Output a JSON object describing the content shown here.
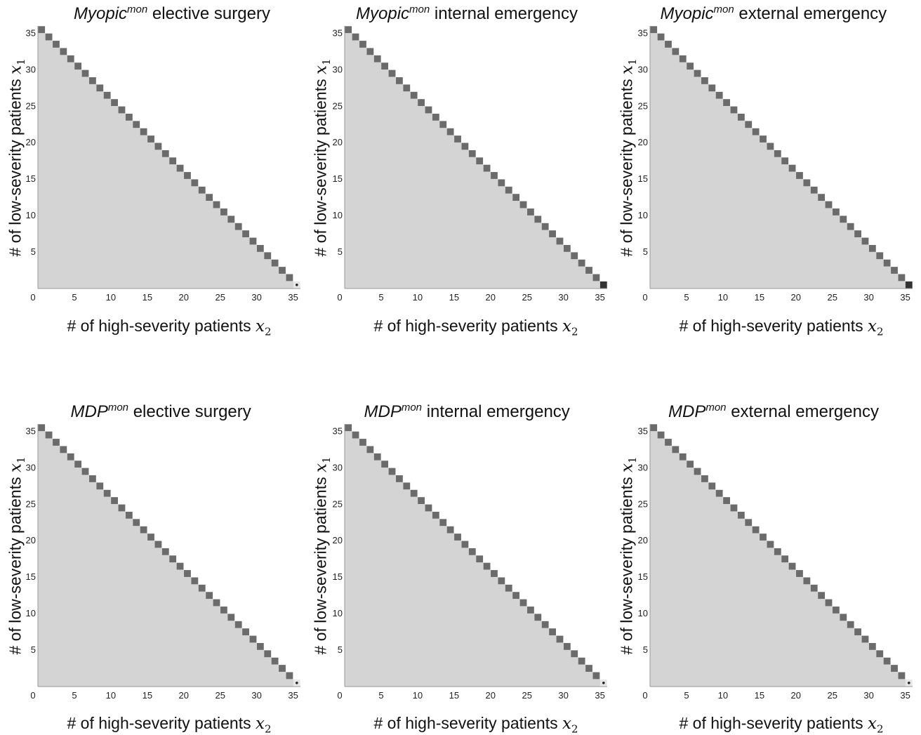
{
  "colors": {
    "background_region": "#d4d4d4",
    "action_cell": "#6b6b6b",
    "dark_cell": "#333333",
    "axis": "#999999"
  },
  "chart_data": [
    {
      "type": "heatmap",
      "policy": "Myopic",
      "superscript": "mon",
      "department": "elective surgery",
      "xlabel_text": "# of high-severity patients ",
      "x_var": "x",
      "x_sub": "2",
      "ylabel_text": "# of low-severity patients ",
      "y_var": "x",
      "y_sub": "1",
      "xticks": [
        "0",
        "5",
        "10",
        "15",
        "20",
        "25",
        "30",
        "35"
      ],
      "yticks": [
        "5",
        "10",
        "15",
        "20",
        "25",
        "30",
        "35"
      ],
      "xlim": [
        0,
        36
      ],
      "ylim": [
        0,
        36
      ],
      "region": "x1 + x2 <= 36",
      "diagonal_cells": "x1 + x2 = 36",
      "corner_cell": {
        "x": 35,
        "y": 0,
        "style": "dot"
      }
    },
    {
      "type": "heatmap",
      "policy": "Myopic",
      "superscript": "mon",
      "department": "internal emergency",
      "xlabel_text": "# of high-severity patients ",
      "x_var": "x",
      "x_sub": "2",
      "ylabel_text": "# of low-severity patients ",
      "y_var": "x",
      "y_sub": "1",
      "xticks": [
        "0",
        "5",
        "10",
        "15",
        "20",
        "25",
        "30",
        "35"
      ],
      "yticks": [
        "5",
        "10",
        "15",
        "20",
        "25",
        "30",
        "35"
      ],
      "xlim": [
        0,
        36
      ],
      "ylim": [
        0,
        36
      ],
      "region": "x1 + x2 <= 36",
      "diagonal_cells": "x1 + x2 = 36",
      "corner_cell": {
        "x": 35,
        "y": 0,
        "style": "dark"
      }
    },
    {
      "type": "heatmap",
      "policy": "Myopic",
      "superscript": "mon",
      "department": "external emergency",
      "xlabel_text": "# of high-severity patients ",
      "x_var": "x",
      "x_sub": "2",
      "ylabel_text": "# of low-severity patients ",
      "y_var": "x",
      "y_sub": "1",
      "xticks": [
        "0",
        "5",
        "10",
        "15",
        "20",
        "25",
        "30",
        "35"
      ],
      "yticks": [
        "5",
        "10",
        "15",
        "20",
        "25",
        "30",
        "35"
      ],
      "xlim": [
        0,
        36
      ],
      "ylim": [
        0,
        36
      ],
      "region": "x1 + x2 <= 36",
      "diagonal_cells": "x1 + x2 = 36",
      "corner_cell": {
        "x": 35,
        "y": 0,
        "style": "dark"
      }
    },
    {
      "type": "heatmap",
      "policy": "MDP",
      "superscript": "mon",
      "department": "elective surgery",
      "xlabel_text": "# of high-severity patients ",
      "x_var": "x",
      "x_sub": "2",
      "ylabel_text": "# of low-severity patients ",
      "y_var": "x",
      "y_sub": "1",
      "xticks": [
        "0",
        "5",
        "10",
        "15",
        "20",
        "25",
        "30",
        "35"
      ],
      "yticks": [
        "5",
        "10",
        "15",
        "20",
        "25",
        "30",
        "35"
      ],
      "xlim": [
        0,
        36
      ],
      "ylim": [
        0,
        36
      ],
      "region": "x1 + x2 <= 36",
      "diagonal_cells": "x1 + x2 = 36",
      "corner_cell": {
        "x": 35,
        "y": 0,
        "style": "dot"
      }
    },
    {
      "type": "heatmap",
      "policy": "MDP",
      "superscript": "mon",
      "department": "internal emergency",
      "xlabel_text": "# of high-severity patients ",
      "x_var": "x",
      "x_sub": "2",
      "ylabel_text": "# of low-severity patients ",
      "y_var": "x",
      "y_sub": "1",
      "xticks": [
        "0",
        "5",
        "10",
        "15",
        "20",
        "25",
        "30",
        "35"
      ],
      "yticks": [
        "5",
        "10",
        "15",
        "20",
        "25",
        "30",
        "35"
      ],
      "xlim": [
        0,
        36
      ],
      "ylim": [
        0,
        36
      ],
      "region": "x1 + x2 <= 36",
      "diagonal_cells": "x1 + x2 = 36",
      "corner_cell": {
        "x": 35,
        "y": 0,
        "style": "dot"
      }
    },
    {
      "type": "heatmap",
      "policy": "MDP",
      "superscript": "mon",
      "department": "external emergency",
      "xlabel_text": "# of high-severity patients ",
      "x_var": "x",
      "x_sub": "2",
      "ylabel_text": "# of low-severity patients ",
      "y_var": "x",
      "y_sub": "1",
      "xticks": [
        "0",
        "5",
        "10",
        "15",
        "20",
        "25",
        "30",
        "35"
      ],
      "yticks": [
        "5",
        "10",
        "15",
        "20",
        "25",
        "30",
        "35"
      ],
      "xlim": [
        0,
        36
      ],
      "ylim": [
        0,
        36
      ],
      "region": "x1 + x2 <= 36",
      "diagonal_cells": "x1 + x2 = 36",
      "corner_cell": {
        "x": 35,
        "y": 0,
        "style": "dot"
      }
    }
  ]
}
